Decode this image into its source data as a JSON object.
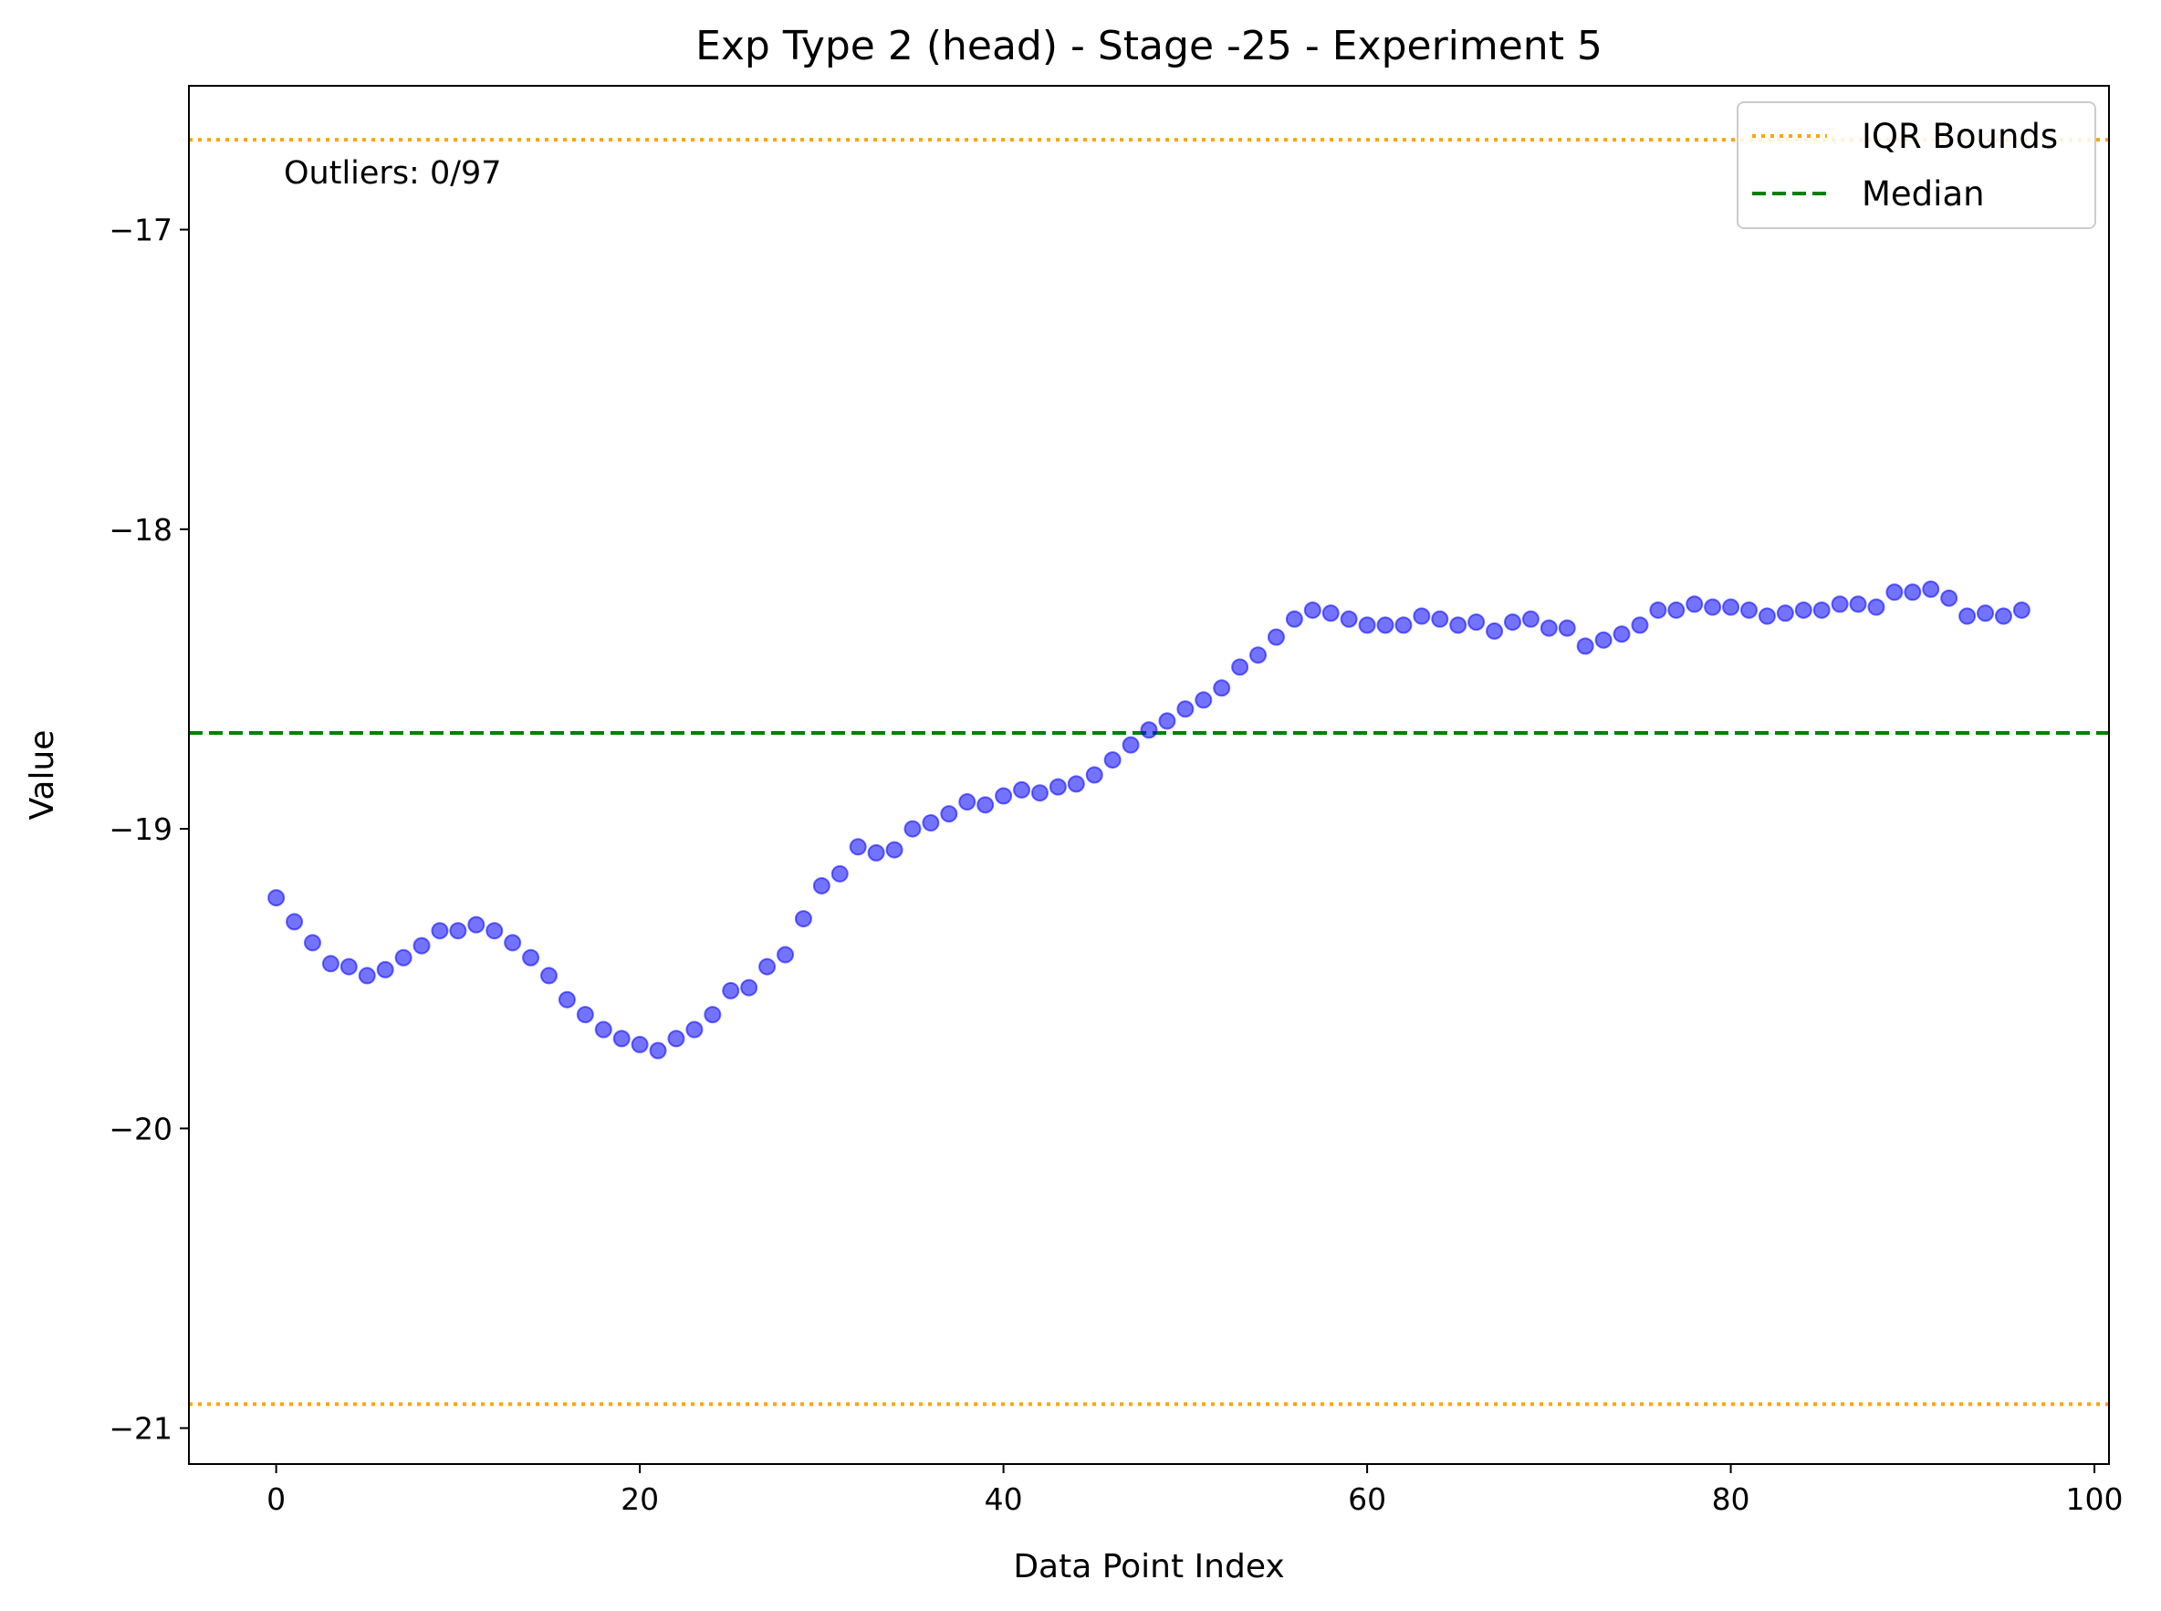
{
  "chart_data": {
    "type": "scatter",
    "title": "Exp Type 2 (head) - Stage -25 - Experiment 5",
    "xlabel": "Data Point Index",
    "ylabel": "Value",
    "xlim": [
      -4.8,
      100.8
    ],
    "ylim": [
      -21.12,
      -16.52
    ],
    "x_ticks": [
      0,
      20,
      40,
      60,
      80,
      100
    ],
    "y_ticks": [
      -21,
      -20,
      -19,
      -18,
      -17
    ],
    "x_tick_labels": [
      "0",
      "20",
      "40",
      "60",
      "80",
      "100"
    ],
    "y_tick_labels": [
      "−21",
      "−20",
      "−19",
      "−18",
      "−17"
    ],
    "grid": false,
    "legend_position": "top-right",
    "annotation": "Outliers: 0/97",
    "series": [
      {
        "color": "#0000ff",
        "x": [
          0,
          1,
          2,
          3,
          4,
          5,
          6,
          7,
          8,
          9,
          10,
          11,
          12,
          13,
          14,
          15,
          16,
          17,
          18,
          19,
          20,
          21,
          22,
          23,
          24,
          25,
          26,
          27,
          28,
          29,
          30,
          31,
          32,
          33,
          34,
          35,
          36,
          37,
          38,
          39,
          40,
          41,
          42,
          43,
          44,
          45,
          46,
          47,
          48,
          49,
          50,
          51,
          52,
          53,
          54,
          55,
          56,
          57,
          58,
          59,
          60,
          61,
          62,
          63,
          64,
          65,
          66,
          67,
          68,
          69,
          70,
          71,
          72,
          73,
          74,
          75,
          76,
          77,
          78,
          79,
          80,
          81,
          82,
          83,
          84,
          85,
          86,
          87,
          88,
          89,
          90,
          91,
          92,
          93,
          94,
          95,
          96
        ],
        "y": [
          -19.23,
          -19.31,
          -19.38,
          -19.45,
          -19.46,
          -19.49,
          -19.47,
          -19.43,
          -19.39,
          -19.34,
          -19.34,
          -19.32,
          -19.34,
          -19.38,
          -19.43,
          -19.49,
          -19.57,
          -19.62,
          -19.67,
          -19.7,
          -19.72,
          -19.74,
          -19.7,
          -19.67,
          -19.62,
          -19.54,
          -19.53,
          -19.46,
          -19.42,
          -19.3,
          -19.19,
          -19.15,
          -19.06,
          -19.08,
          -19.07,
          -19.0,
          -18.98,
          -18.95,
          -18.91,
          -18.92,
          -18.89,
          -18.87,
          -18.88,
          -18.86,
          -18.85,
          -18.82,
          -18.77,
          -18.72,
          -18.67,
          -18.64,
          -18.6,
          -18.57,
          -18.53,
          -18.46,
          -18.42,
          -18.36,
          -18.3,
          -18.27,
          -18.28,
          -18.3,
          -18.32,
          -18.32,
          -18.32,
          -18.29,
          -18.3,
          -18.32,
          -18.31,
          -18.34,
          -18.31,
          -18.3,
          -18.33,
          -18.33,
          -18.39,
          -18.37,
          -18.35,
          -18.32,
          -18.27,
          -18.27,
          -18.25,
          -18.26,
          -18.26,
          -18.27,
          -18.29,
          -18.28,
          -18.27,
          -18.27,
          -18.25,
          -18.25,
          -18.26,
          -18.21,
          -18.21,
          -18.2,
          -18.23,
          -18.29,
          -18.28,
          -18.29,
          -18.27
        ]
      }
    ],
    "reference_lines": [
      {
        "name": "IQR Bounds",
        "orientation": "horizontal",
        "values": [
          -16.7,
          -20.92
        ],
        "color": "#ffa500",
        "style": "dotted"
      },
      {
        "name": "Median",
        "orientation": "horizontal",
        "values": [
          -18.68
        ],
        "color": "#008000",
        "style": "dashed"
      }
    ]
  }
}
